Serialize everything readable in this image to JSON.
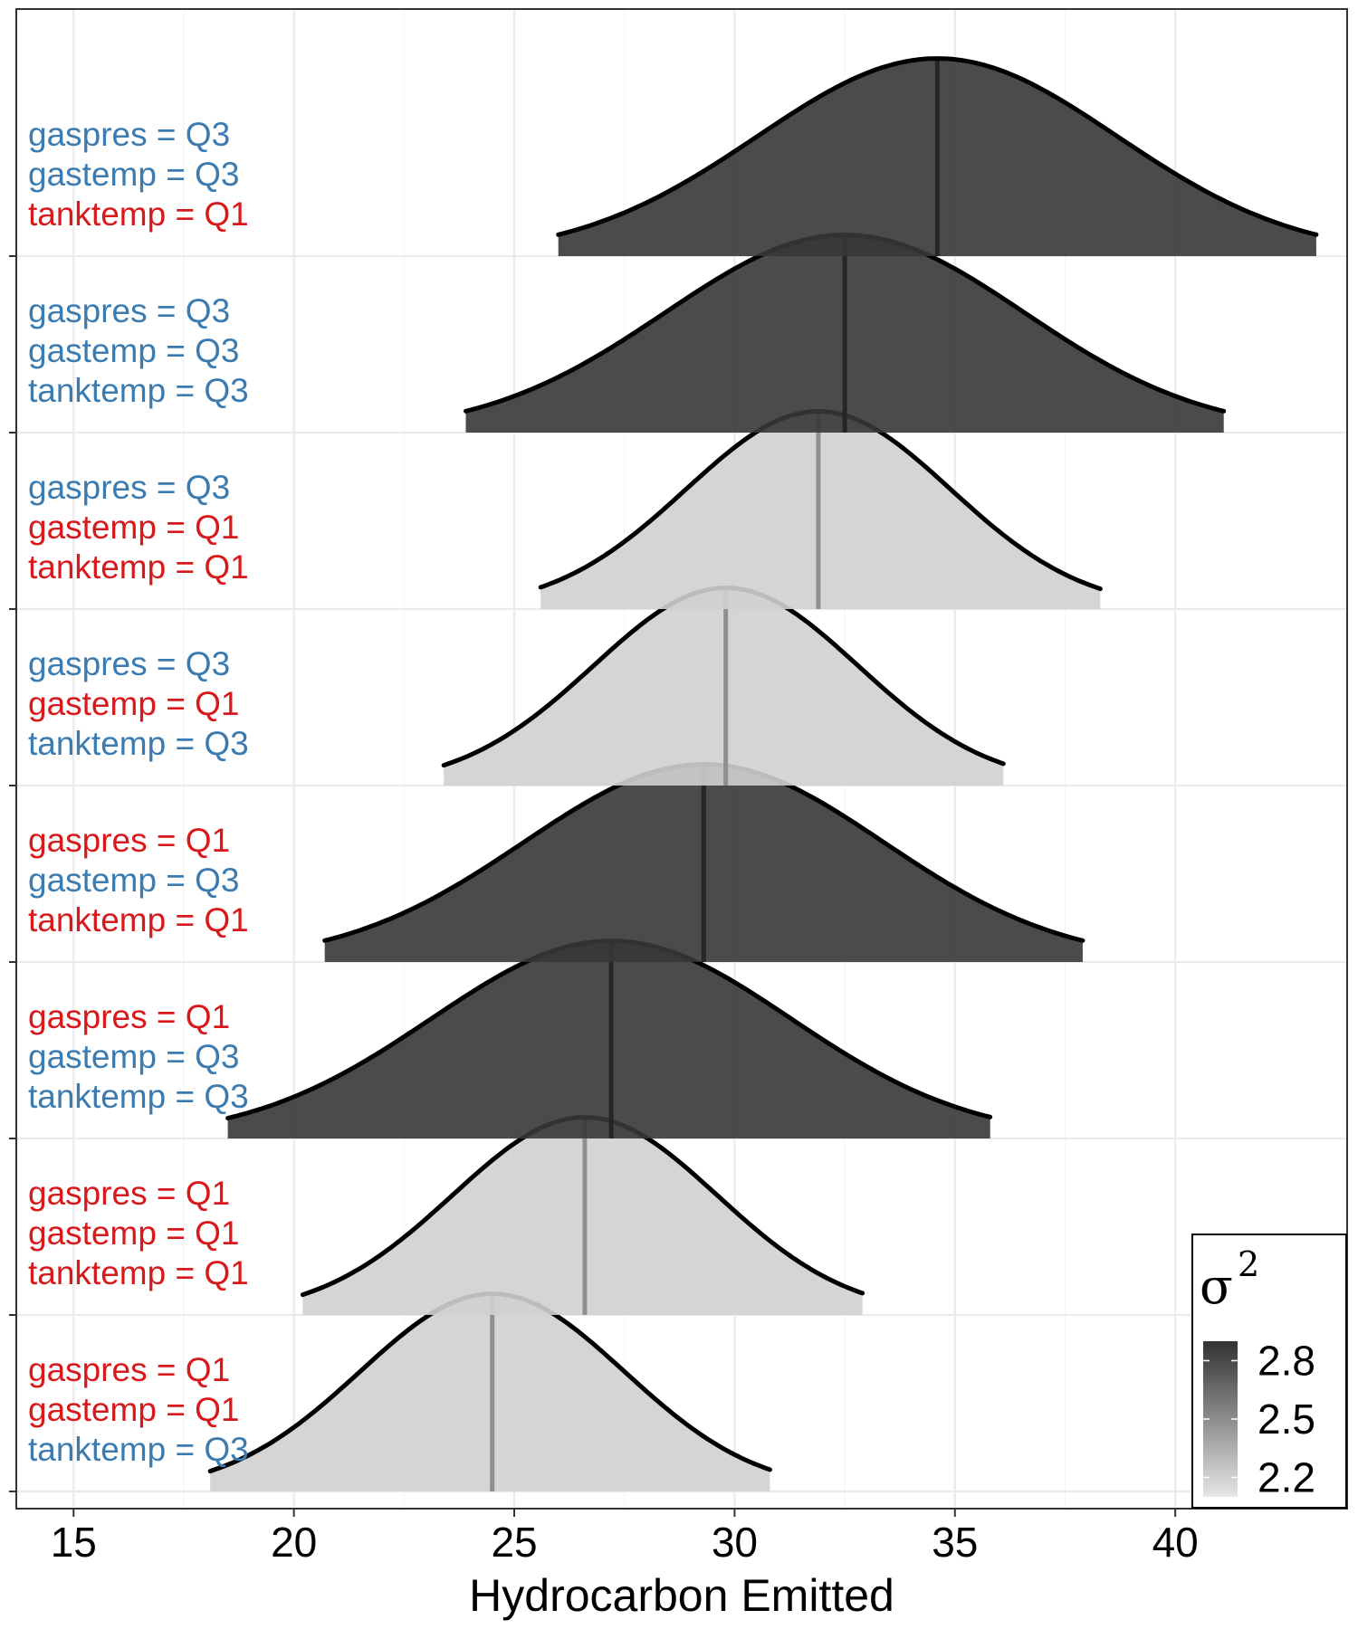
{
  "chart_data": {
    "type": "ridgeline",
    "xlabel": "Hydrocarbon Emitted",
    "x_ticks": [
      15,
      20,
      25,
      30,
      35,
      40
    ],
    "x_tick_labels": [
      "15",
      "20",
      "25",
      "30",
      "35",
      "40"
    ],
    "xlim": [
      13.7,
      43.9
    ],
    "grid": true,
    "legend": {
      "title": "σ",
      "title_superscript": "2",
      "placement": "bottom-right",
      "type": "colorbar",
      "range": [
        2.1,
        2.9
      ],
      "breaks": [
        2.8,
        2.5,
        2.2
      ],
      "break_labels": [
        "2.8",
        "2.5",
        "2.2"
      ],
      "color_low": "#e6e6e6",
      "color_high": "#333333"
    },
    "label_colors": {
      "Q1": "#d7191c",
      "Q3": "#3b7bb0"
    },
    "series": [
      {
        "conditions": [
          {
            "var": "gaspres",
            "level": "Q3"
          },
          {
            "var": "gastemp",
            "level": "Q3"
          },
          {
            "var": "tanktemp",
            "level": "Q1"
          }
        ],
        "labels": [
          "gaspres = Q3",
          "gastemp = Q3",
          "tanktemp = Q1"
        ],
        "mean": 34.6,
        "sigma2": 2.88,
        "range": [
          26.0,
          43.2
        ]
      },
      {
        "conditions": [
          {
            "var": "gaspres",
            "level": "Q3"
          },
          {
            "var": "gastemp",
            "level": "Q3"
          },
          {
            "var": "tanktemp",
            "level": "Q3"
          }
        ],
        "labels": [
          "gaspres = Q3",
          "gastemp = Q3",
          "tanktemp = Q3"
        ],
        "mean": 32.5,
        "sigma2": 2.88,
        "range": [
          23.9,
          41.1
        ]
      },
      {
        "conditions": [
          {
            "var": "gaspres",
            "level": "Q3"
          },
          {
            "var": "gastemp",
            "level": "Q1"
          },
          {
            "var": "tanktemp",
            "level": "Q1"
          }
        ],
        "labels": [
          "gaspres = Q3",
          "gastemp = Q1",
          "tanktemp = Q1"
        ],
        "mean": 31.9,
        "sigma2": 2.2,
        "range": [
          25.6,
          38.3
        ]
      },
      {
        "conditions": [
          {
            "var": "gaspres",
            "level": "Q3"
          },
          {
            "var": "gastemp",
            "level": "Q1"
          },
          {
            "var": "tanktemp",
            "level": "Q3"
          }
        ],
        "labels": [
          "gaspres = Q3",
          "gastemp = Q1",
          "tanktemp = Q3"
        ],
        "mean": 29.8,
        "sigma2": 2.2,
        "range": [
          23.4,
          36.1
        ]
      },
      {
        "conditions": [
          {
            "var": "gaspres",
            "level": "Q1"
          },
          {
            "var": "gastemp",
            "level": "Q3"
          },
          {
            "var": "tanktemp",
            "level": "Q1"
          }
        ],
        "labels": [
          "gaspres = Q1",
          "gastemp = Q3",
          "tanktemp = Q1"
        ],
        "mean": 29.3,
        "sigma2": 2.88,
        "range": [
          20.7,
          37.9
        ]
      },
      {
        "conditions": [
          {
            "var": "gaspres",
            "level": "Q1"
          },
          {
            "var": "gastemp",
            "level": "Q3"
          },
          {
            "var": "tanktemp",
            "level": "Q3"
          }
        ],
        "labels": [
          "gaspres = Q1",
          "gastemp = Q3",
          "tanktemp = Q3"
        ],
        "mean": 27.2,
        "sigma2": 2.88,
        "range": [
          18.5,
          35.8
        ]
      },
      {
        "conditions": [
          {
            "var": "gaspres",
            "level": "Q1"
          },
          {
            "var": "gastemp",
            "level": "Q1"
          },
          {
            "var": "tanktemp",
            "level": "Q1"
          }
        ],
        "labels": [
          "gaspres = Q1",
          "gastemp = Q1",
          "tanktemp = Q1"
        ],
        "mean": 26.6,
        "sigma2": 2.2,
        "range": [
          20.2,
          32.9
        ]
      },
      {
        "conditions": [
          {
            "var": "gaspres",
            "level": "Q1"
          },
          {
            "var": "gastemp",
            "level": "Q1"
          },
          {
            "var": "tanktemp",
            "level": "Q3"
          }
        ],
        "labels": [
          "gaspres = Q1",
          "gastemp = Q1",
          "tanktemp = Q3"
        ],
        "mean": 24.5,
        "sigma2": 2.2,
        "range": [
          18.1,
          30.8
        ]
      }
    ]
  }
}
